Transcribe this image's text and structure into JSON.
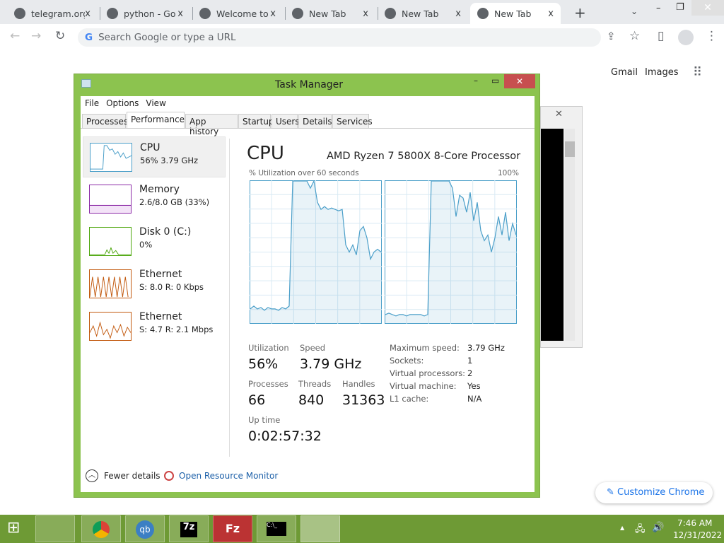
{
  "browser": {
    "tabs": [
      {
        "title": "telegram.org"
      },
      {
        "title": "python - Go"
      },
      {
        "title": "Welcome to"
      },
      {
        "title": "New Tab"
      },
      {
        "title": "New Tab"
      },
      {
        "title": "New Tab",
        "active": true
      }
    ],
    "omnibox_placeholder": "Search Google or type a URL",
    "links": {
      "gmail": "Gmail",
      "images": "Images"
    },
    "customize_label": "Customize Chrome"
  },
  "task_manager": {
    "title": "Task Manager",
    "menu": [
      "File",
      "Options",
      "View"
    ],
    "tabs": [
      "Processes",
      "Performance",
      "App history",
      "Startup",
      "Users",
      "Details",
      "Services"
    ],
    "selected_tab": "Performance",
    "sidebar": [
      {
        "name": "CPU",
        "detail": "56% 3.79 GHz",
        "color": "#4b9fc9"
      },
      {
        "name": "Memory",
        "detail": "2.6/8.0 GB (33%)",
        "color": "#8b2aa6"
      },
      {
        "name": "Disk 0 (C:)",
        "detail": "0%",
        "color": "#4da60c"
      },
      {
        "name": "Ethernet",
        "detail": "S: 8.0 R: 0 Kbps",
        "color": "#c2590e"
      },
      {
        "name": "Ethernet",
        "detail": "S: 4.7 R: 2.1 Mbps",
        "color": "#c2590e"
      }
    ],
    "main": {
      "heading": "CPU",
      "processor": "AMD Ryzen 7 5800X 8-Core Processor",
      "graph_label": "% Utilization over 60 seconds",
      "graph_max": "100%",
      "stats": {
        "utilization_label": "Utilization",
        "utilization": "56%",
        "speed_label": "Speed",
        "speed": "3.79 GHz",
        "processes_label": "Processes",
        "processes": "66",
        "threads_label": "Threads",
        "threads": "840",
        "handles_label": "Handles",
        "handles": "31363",
        "uptime_label": "Up time",
        "uptime": "0:02:57:32"
      },
      "specs": [
        [
          "Maximum speed:",
          "3.79 GHz"
        ],
        [
          "Sockets:",
          "1"
        ],
        [
          "Virtual processors:",
          "2"
        ],
        [
          "Virtual machine:",
          "Yes"
        ],
        [
          "L1 cache:",
          "N/A"
        ]
      ]
    },
    "footer": {
      "fewer": "Fewer details",
      "resource_monitor": "Open Resource Monitor"
    }
  },
  "chart_data": {
    "type": "line",
    "ylim": [
      0,
      100
    ],
    "series": [
      {
        "values": [
          10,
          12,
          10,
          11,
          9,
          11,
          10,
          10,
          9,
          11,
          10,
          12,
          100,
          100,
          100,
          100,
          100,
          95,
          100,
          85,
          80,
          82,
          80,
          81,
          80,
          79,
          80,
          55,
          50,
          55,
          48,
          65,
          68,
          60,
          45,
          50,
          52,
          50
        ]
      },
      {
        "values": [
          6,
          7,
          6,
          5,
          6,
          6,
          5,
          6,
          6,
          6,
          6,
          5,
          6,
          100,
          100,
          100,
          100,
          100,
          100,
          95,
          75,
          90,
          88,
          78,
          92,
          72,
          85,
          65,
          58,
          62,
          50,
          60,
          75,
          62,
          78,
          58,
          70,
          62
        ]
      }
    ]
  },
  "taskbar": {
    "time": "7:46 AM",
    "date": "12/31/2022"
  },
  "colors": {
    "accent": "#8cc34f",
    "taskbar": "#6e9a35",
    "cpu": "#4b9fc9"
  }
}
